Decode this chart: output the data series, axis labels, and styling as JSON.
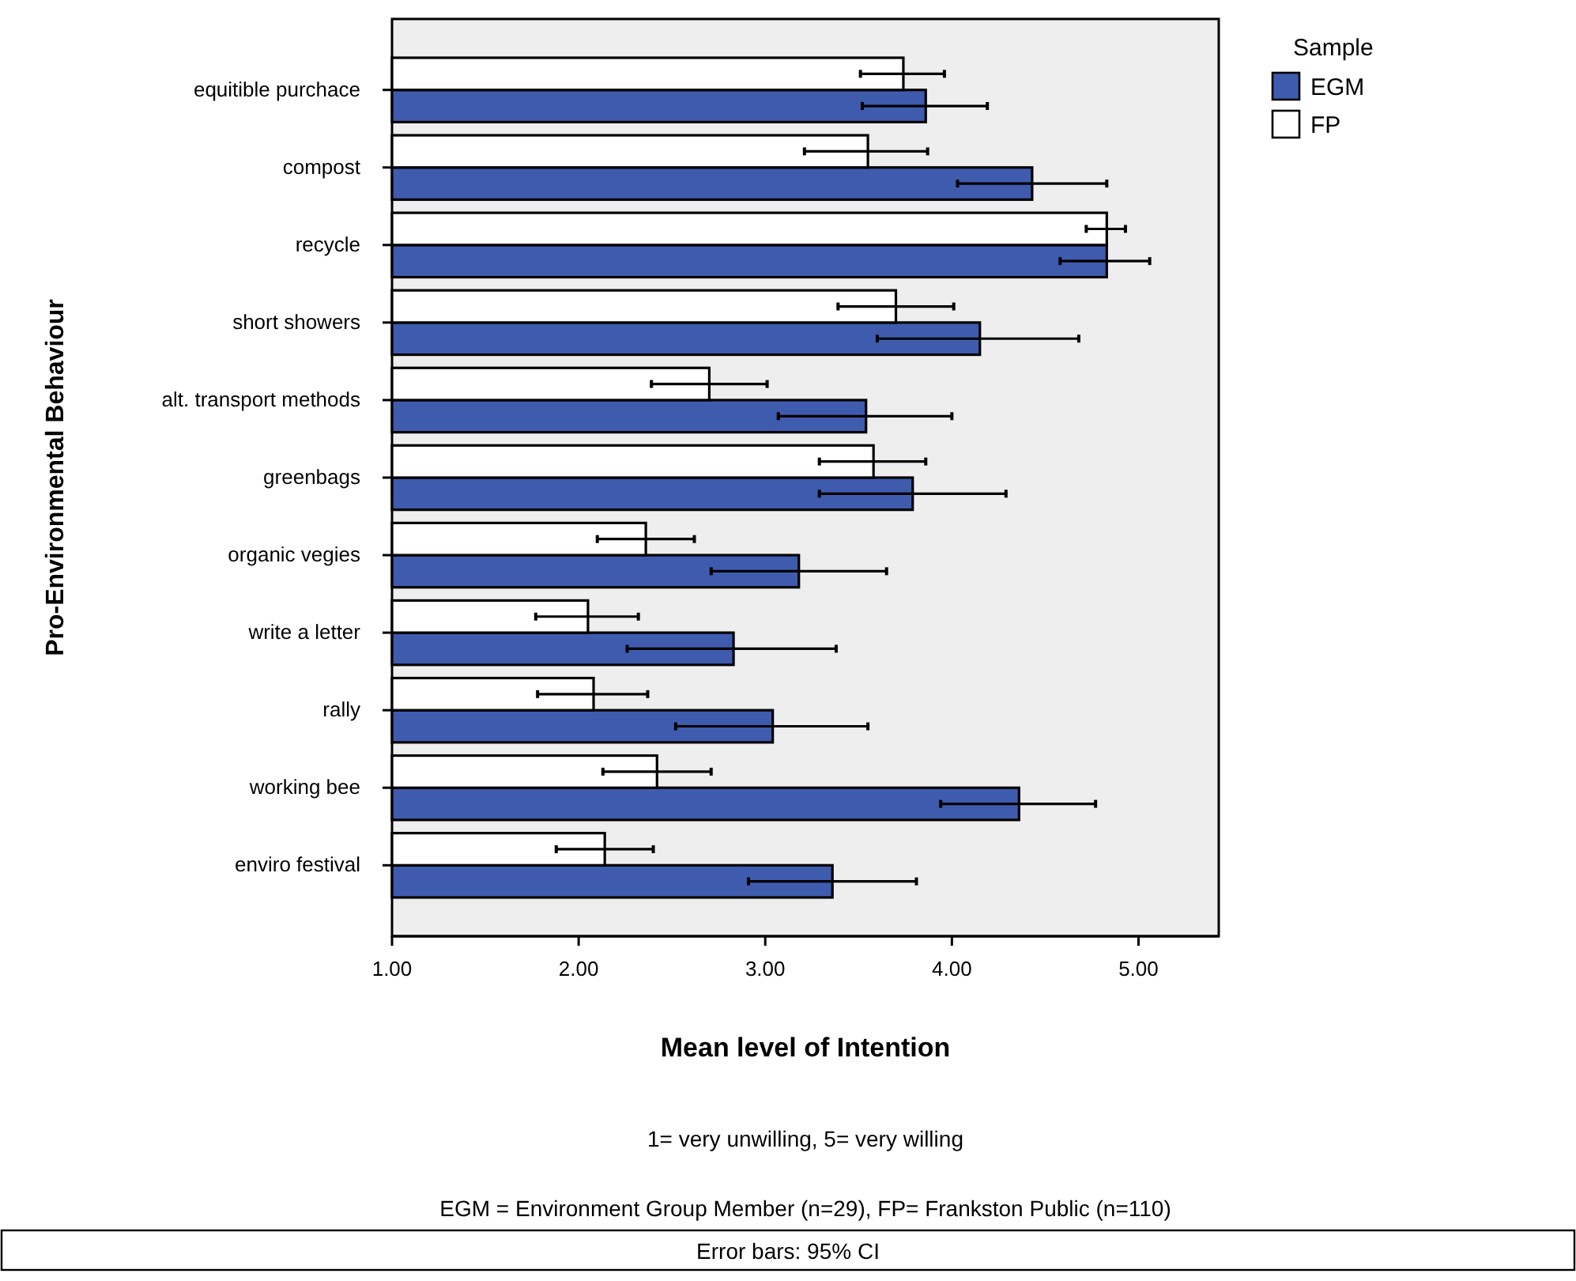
{
  "chart_data": {
    "type": "bar",
    "orientation": "horizontal",
    "ylabel": "Pro-Environmental Behaviour",
    "xlabel": "Mean level of Intention",
    "legend_title": "Sample",
    "legend": "top right",
    "categories": [
      "equitible purchace",
      "compost",
      "recycle",
      "short showers",
      "alt. transport methods",
      "greenbags",
      "organic vegies",
      "write a letter",
      "rally",
      "working bee",
      "enviro festival"
    ],
    "series": [
      {
        "name": "EGM",
        "color": "#3f5bae",
        "values": [
          3.86,
          4.43,
          4.83,
          4.15,
          3.54,
          3.79,
          3.18,
          2.83,
          3.04,
          4.36,
          3.36
        ],
        "errors": [
          [
            3.52,
            4.19
          ],
          [
            4.03,
            4.83
          ],
          [
            4.58,
            5.06
          ],
          [
            3.6,
            4.68
          ],
          [
            3.07,
            4.0
          ],
          [
            3.29,
            4.29
          ],
          [
            2.71,
            3.65
          ],
          [
            2.26,
            3.38
          ],
          [
            2.52,
            3.55
          ],
          [
            3.94,
            4.77
          ],
          [
            2.91,
            3.81
          ]
        ]
      },
      {
        "name": "FP",
        "color": "#ffffff",
        "values": [
          3.74,
          3.55,
          4.83,
          3.7,
          2.7,
          3.58,
          2.36,
          2.05,
          2.08,
          2.42,
          2.14
        ],
        "errors": [
          [
            3.51,
            3.96
          ],
          [
            3.21,
            3.87
          ],
          [
            4.72,
            4.93
          ],
          [
            3.39,
            4.01
          ],
          [
            2.39,
            3.01
          ],
          [
            3.29,
            3.86
          ],
          [
            2.1,
            2.62
          ],
          [
            1.77,
            2.32
          ],
          [
            1.78,
            2.37
          ],
          [
            2.13,
            2.71
          ],
          [
            1.88,
            2.4
          ]
        ]
      }
    ],
    "xlim": [
      1,
      5.43
    ],
    "xticks": [
      {
        "value": 1,
        "label": "1.00"
      },
      {
        "value": 2,
        "label": "2.00"
      },
      {
        "value": 3,
        "label": "3.00"
      },
      {
        "value": 4,
        "label": "4.00"
      },
      {
        "value": 5,
        "label": "5.00"
      }
    ],
    "grid": false,
    "annotations": [
      "1= very unwilling, 5= very willing",
      "EGM = Environment Group Member (n=29), FP= Frankston Public (n=110)",
      "Error bars: 95% CI"
    ]
  }
}
